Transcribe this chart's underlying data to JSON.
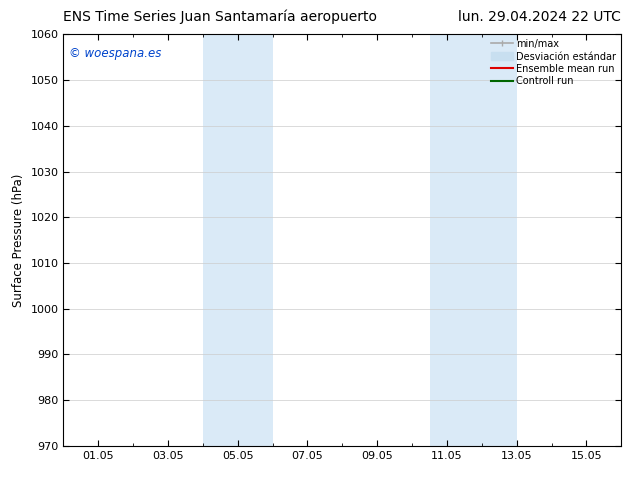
{
  "title_left": "ENS Time Series Juan Santamaría aeropuerto",
  "title_right": "lun. 29.04.2024 22 UTC",
  "ylabel": "Surface Pressure (hPa)",
  "xlabel": "",
  "ylim": [
    970,
    1060
  ],
  "yticks": [
    970,
    980,
    990,
    1000,
    1010,
    1020,
    1030,
    1040,
    1050,
    1060
  ],
  "xtick_labels": [
    "01.05",
    "03.05",
    "05.05",
    "07.05",
    "09.05",
    "11.05",
    "13.05",
    "15.05"
  ],
  "xtick_positions": [
    1,
    3,
    5,
    7,
    9,
    11,
    13,
    15
  ],
  "xlim": [
    0,
    16
  ],
  "shaded_regions": [
    {
      "xmin": 4.0,
      "xmax": 6.0
    },
    {
      "xmin": 10.5,
      "xmax": 13.0
    }
  ],
  "shade_color": "#daeaf7",
  "watermark_text": "© woespana.es",
  "watermark_color": "#0044cc",
  "legend_entries": [
    {
      "label": "min/max",
      "color": "#aaaaaa",
      "lw": 1.2,
      "linestyle": "-"
    },
    {
      "label": "Desviación estándar",
      "color": "#c8dff0",
      "lw": 7,
      "linestyle": "-"
    },
    {
      "label": "Ensemble mean run",
      "color": "#dd0000",
      "lw": 1.5,
      "linestyle": "-"
    },
    {
      "label": "Controll run",
      "color": "#006600",
      "lw": 1.5,
      "linestyle": "-"
    }
  ],
  "bg_color": "white",
  "grid_color": "#cccccc",
  "title_fontsize": 10,
  "tick_fontsize": 8,
  "ylabel_fontsize": 8.5,
  "watermark_fontsize": 8.5,
  "legend_fontsize": 7
}
